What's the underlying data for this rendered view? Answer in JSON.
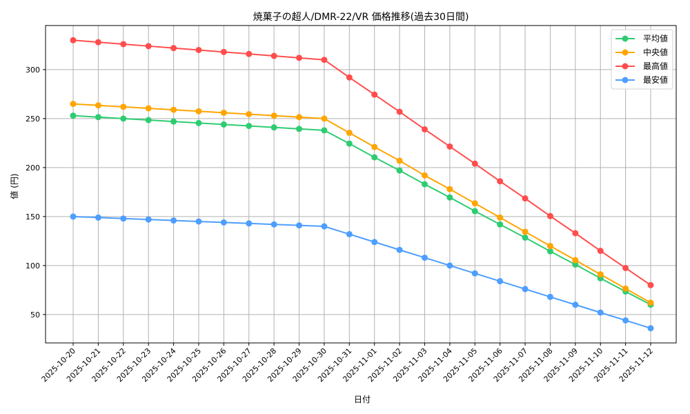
{
  "chart_data": {
    "type": "line",
    "title": "焼菓子の超人/DMR-22/VR 価格推移(過去30日間)",
    "xlabel": "日付",
    "ylabel": "値 (円)",
    "ylim": [
      21,
      345
    ],
    "yticks": [
      50,
      100,
      150,
      200,
      250,
      300
    ],
    "grid": true,
    "legend_position": "upper right",
    "x": [
      "2025-10-20",
      "2025-10-21",
      "2025-10-22",
      "2025-10-23",
      "2025-10-24",
      "2025-10-25",
      "2025-10-26",
      "2025-10-27",
      "2025-10-28",
      "2025-10-29",
      "2025-10-30",
      "2025-10-31",
      "2025-11-01",
      "2025-11-02",
      "2025-11-03",
      "2025-11-04",
      "2025-11-05",
      "2025-11-06",
      "2025-11-07",
      "2025-11-08",
      "2025-11-09",
      "2025-11-10",
      "2025-11-11",
      "2025-11-12"
    ],
    "series": [
      {
        "name": "平均値",
        "color": "#2ecc71",
        "values": [
          253,
          251.5,
          250,
          248.5,
          247,
          245.5,
          244,
          242.5,
          241,
          239.5,
          238,
          224.5,
          210.5,
          197,
          183,
          169.5,
          155.5,
          142,
          128.5,
          114.5,
          101,
          87,
          73.5,
          60
        ]
      },
      {
        "name": "中央値",
        "color": "#ffa500",
        "values": [
          265,
          263.5,
          262,
          260.5,
          259,
          257.5,
          256,
          254.5,
          253,
          251.5,
          250,
          235.5,
          221,
          207,
          192,
          178,
          163.5,
          149,
          134.5,
          120,
          105.5,
          91,
          76.5,
          62
        ]
      },
      {
        "name": "最高値",
        "color": "#ff4d4d",
        "values": [
          330,
          328,
          326,
          324,
          322,
          320,
          318,
          316,
          314,
          312,
          310,
          292,
          274.5,
          257,
          239,
          221.5,
          204,
          186,
          168.5,
          150.5,
          133,
          115,
          97.5,
          80
        ]
      },
      {
        "name": "最安値",
        "color": "#4d9eff",
        "values": [
          150,
          149,
          148,
          147,
          146,
          145,
          144,
          143,
          142,
          141,
          140,
          132,
          124,
          116,
          108,
          100,
          92,
          84,
          76,
          68,
          60,
          52,
          44,
          36
        ]
      }
    ]
  }
}
